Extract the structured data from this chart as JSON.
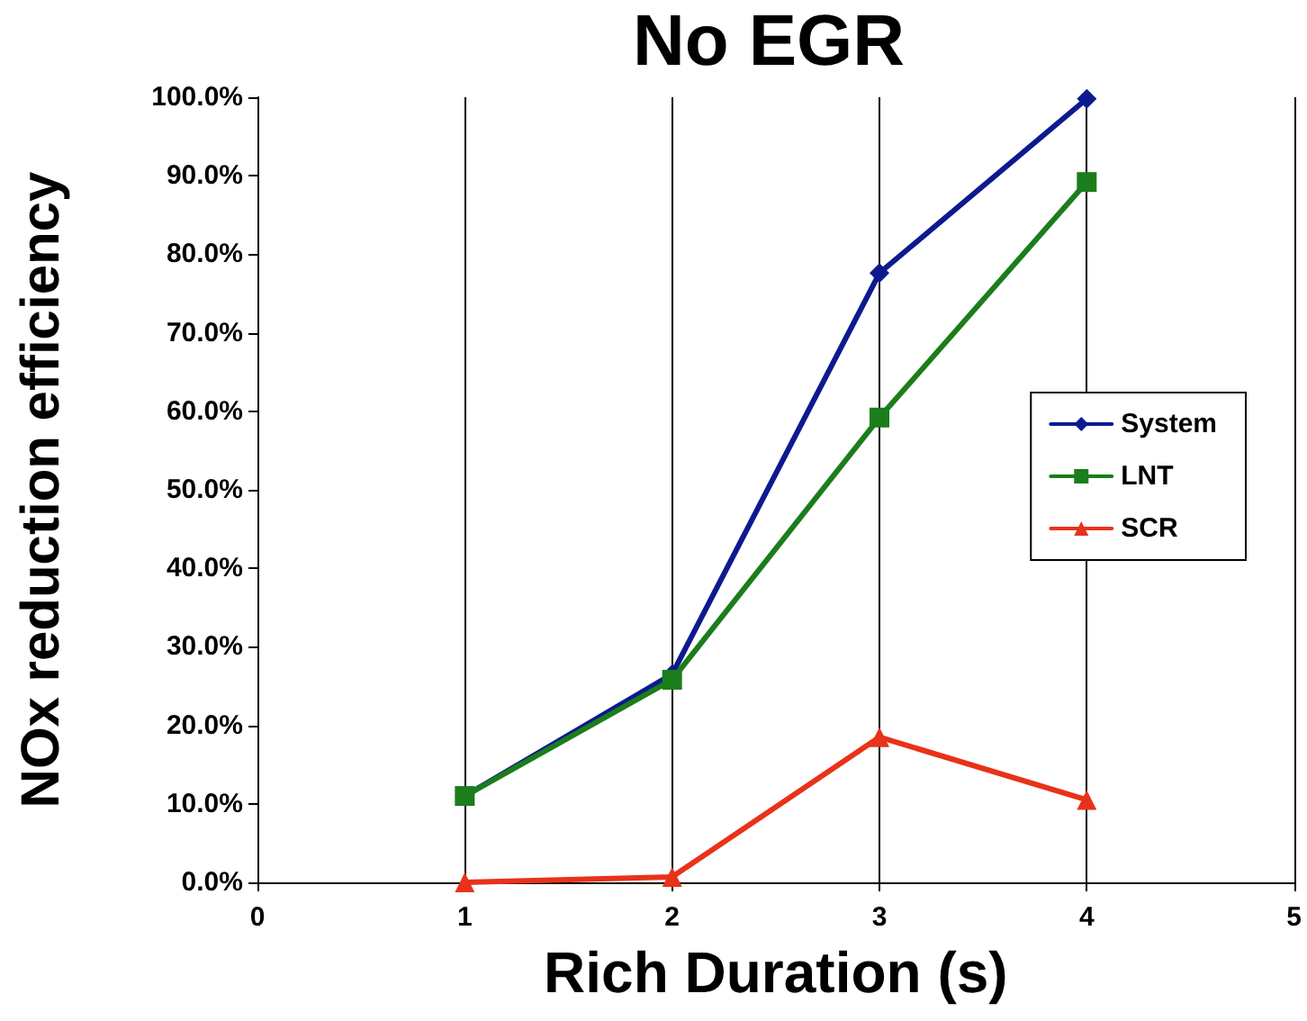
{
  "chart_data": {
    "type": "line",
    "title": "No EGR",
    "xlabel": "Rich Duration (s)",
    "ylabel": "NOx reduction efficiency",
    "x": [
      1,
      2,
      3,
      4
    ],
    "series": [
      {
        "name": "System",
        "color": "#0d1a8f",
        "marker": "diamond",
        "values": [
          11,
          26.5,
          77.6,
          99.8
        ]
      },
      {
        "name": "LNT",
        "color": "#1b7d1b",
        "marker": "square",
        "values": [
          11,
          25.8,
          59.2,
          89.2
        ]
      },
      {
        "name": "SCR",
        "color": "#e8321a",
        "marker": "triangle",
        "values": [
          0,
          0.7,
          18.5,
          10.5
        ]
      }
    ],
    "xlim": [
      0,
      5
    ],
    "xticks": [
      0,
      1,
      2,
      3,
      4,
      5
    ],
    "ylim": [
      0,
      100
    ],
    "yticks": [
      {
        "value": 0,
        "label": "0.0%"
      },
      {
        "value": 10,
        "label": "10.0%"
      },
      {
        "value": 20,
        "label": "20.0%"
      },
      {
        "value": 30,
        "label": "30.0%"
      },
      {
        "value": 40,
        "label": "40.0%"
      },
      {
        "value": 50,
        "label": "50.0%"
      },
      {
        "value": 60,
        "label": "60.0%"
      },
      {
        "value": 70,
        "label": "70.0%"
      },
      {
        "value": 80,
        "label": "80.0%"
      },
      {
        "value": 90,
        "label": "90.0%"
      },
      {
        "value": 100,
        "label": "100.0%"
      }
    ],
    "grid": "x",
    "legend": "right",
    "line_style": "solid"
  }
}
